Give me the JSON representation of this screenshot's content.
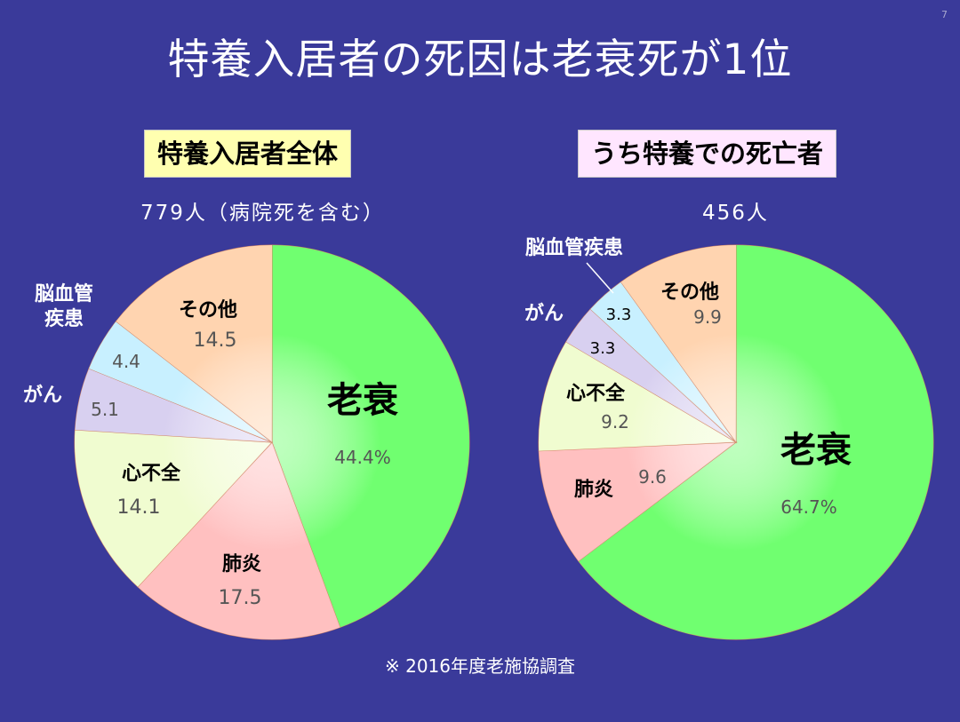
{
  "page_number": "7",
  "title": "特養入居者の死因は老衰死が1位",
  "footnote": "※ 2016年度老施協調査",
  "colors": {
    "background": "#3a3a9a",
    "rousui": "#70ff70",
    "haien": "#ffc0c0",
    "shinfuzen": "#f0fcd0",
    "gan": "#d8d0f0",
    "noukekkan": "#c8f0ff",
    "sonota": "#ffd4b0"
  },
  "chart_data": [
    {
      "type": "pie",
      "title": "特養入居者全体",
      "subtitle": "779人（病院死を含む）",
      "start_angle_deg": 0,
      "direction": "clockwise",
      "slices": [
        {
          "key": "rousui",
          "label": "老衰",
          "value": 44.4,
          "display": "44.4%"
        },
        {
          "key": "haien",
          "label": "肺炎",
          "value": 17.5,
          "display": "17.5"
        },
        {
          "key": "shinfuzen",
          "label": "心不全",
          "value": 14.1,
          "display": "14.1"
        },
        {
          "key": "gan",
          "label": "がん",
          "value": 5.1,
          "display": "5.1"
        },
        {
          "key": "noukekkan",
          "label": "脳血管疾患",
          "label_lines": [
            "脳血管",
            "疾患"
          ],
          "value": 4.4,
          "display": "4.4"
        },
        {
          "key": "sonota",
          "label": "その他",
          "value": 14.5,
          "display": "14.5"
        }
      ]
    },
    {
      "type": "pie",
      "title": "うち特養での死亡者",
      "subtitle": "456人",
      "start_angle_deg": 0,
      "direction": "clockwise",
      "slices": [
        {
          "key": "rousui",
          "label": "老衰",
          "value": 64.7,
          "display": "64.7%"
        },
        {
          "key": "haien",
          "label": "肺炎",
          "value": 9.6,
          "display": "9.6"
        },
        {
          "key": "shinfuzen",
          "label": "心不全",
          "value": 9.2,
          "display": "9.2"
        },
        {
          "key": "gan",
          "label": "がん",
          "value": 3.3,
          "display": "3.3"
        },
        {
          "key": "noukekkan",
          "label": "脳血管疾患",
          "value": 3.3,
          "display": "3.3"
        },
        {
          "key": "sonota",
          "label": "その他",
          "value": 9.9,
          "display": "9.9"
        }
      ]
    }
  ]
}
